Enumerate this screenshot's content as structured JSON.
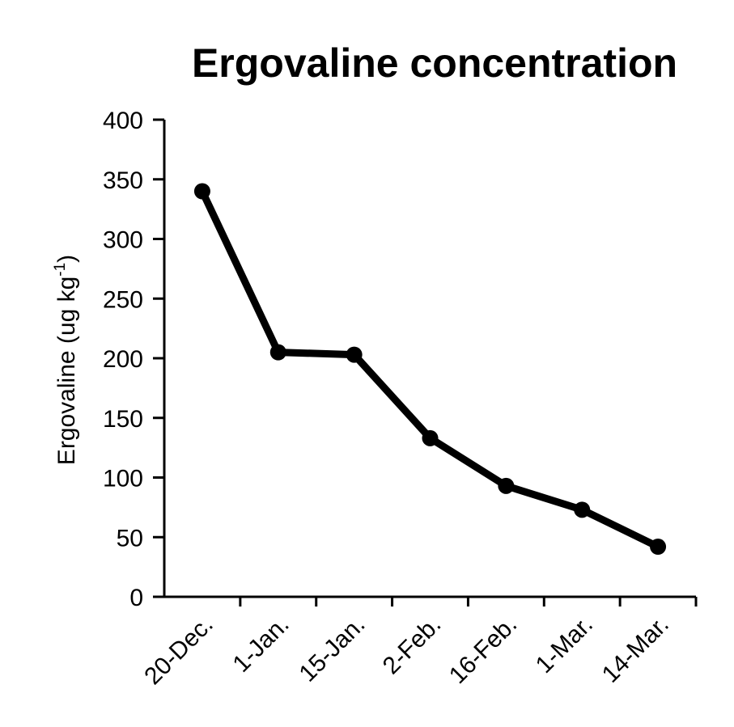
{
  "chart_data": {
    "type": "line",
    "title": "Ergovaline concentration",
    "ylabel": {
      "main": "Ergovaline (ug kg",
      "superscript": "-1",
      "close": ")"
    },
    "xlabel": "",
    "categories": [
      "20-Dec.",
      "1-Jan.",
      "15-Jan.",
      "2-Feb.",
      "16-Feb.",
      "1-Mar.",
      "14-Mar."
    ],
    "ylim": [
      0,
      400
    ],
    "yticks": [
      0,
      50,
      100,
      150,
      200,
      250,
      300,
      350,
      400
    ],
    "series": [
      {
        "values": [
          340,
          205,
          203,
          133,
          93,
          73,
          42
        ],
        "color": "#000000",
        "marker": "circle"
      }
    ],
    "grid": false,
    "legend": "none"
  }
}
